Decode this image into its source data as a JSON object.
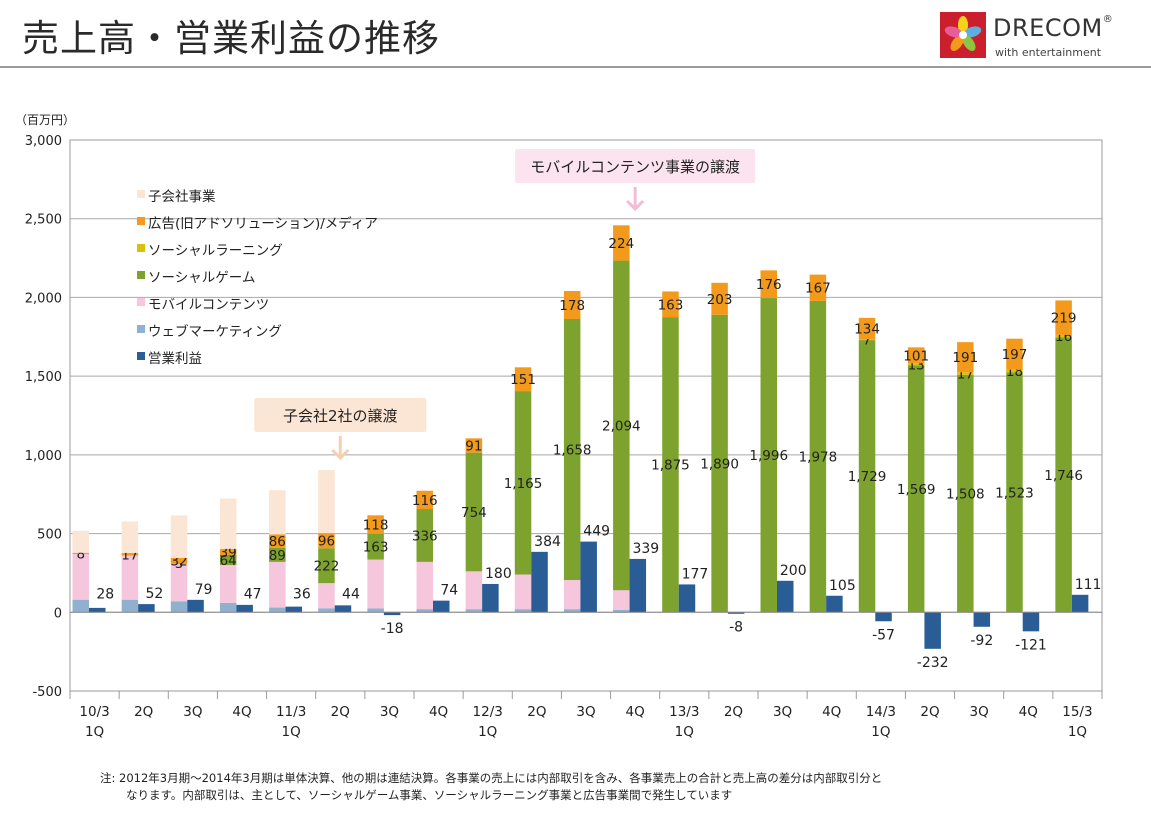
{
  "header": {
    "title": "売上高・営業利益の推移",
    "logo_text": "DRECOM",
    "logo_sub": "with entertainment",
    "logo_mark": "®"
  },
  "note": {
    "line1": "注: 2012年3月期～2014年3月期は単体決算、他の期は連結決算。各事業の売上には内部取引を含み、各事業売上の合計と売上高の差分は内部取引分と",
    "line2": "なります。内部取引は、主として、ソーシャルゲーム事業、ソーシャルラーニング事業と広告事業間で発生しています"
  },
  "chart_data": {
    "type": "bar",
    "unit_label": "（百万円）",
    "ylim": [
      -500,
      3000
    ],
    "yticks": [
      -500,
      0,
      500,
      1000,
      1500,
      2000,
      2500,
      3000
    ],
    "ytick_labels": [
      "-500",
      "0",
      "500",
      "1,000",
      "1,500",
      "2,000",
      "2,500",
      "3,000"
    ],
    "categories": [
      [
        "10/3",
        "1Q"
      ],
      [
        "2Q"
      ],
      [
        "3Q"
      ],
      [
        "4Q"
      ],
      [
        "11/3",
        "1Q"
      ],
      [
        "2Q"
      ],
      [
        "3Q"
      ],
      [
        "4Q"
      ],
      [
        "12/3",
        "1Q"
      ],
      [
        "2Q"
      ],
      [
        "3Q"
      ],
      [
        "4Q"
      ],
      [
        "13/3",
        "1Q"
      ],
      [
        "2Q"
      ],
      [
        "3Q"
      ],
      [
        "4Q"
      ],
      [
        "14/3",
        "1Q"
      ],
      [
        "2Q"
      ],
      [
        "3Q"
      ],
      [
        "4Q"
      ],
      [
        "15/3",
        "1Q"
      ]
    ],
    "stack_series": [
      {
        "name": "ウェブマーケティング",
        "color": "#8fb0cf",
        "values": [
          80,
          80,
          70,
          60,
          30,
          25,
          25,
          20,
          20,
          20,
          20,
          15,
          0,
          0,
          0,
          0,
          0,
          0,
          0,
          0,
          0
        ]
      },
      {
        "name": "モバイルコンテンツ",
        "color": "#f6c6dc",
        "values": [
          290,
          280,
          240,
          240,
          290,
          160,
          310,
          300,
          240,
          220,
          185,
          125,
          0,
          0,
          0,
          0,
          0,
          0,
          0,
          0,
          0
        ]
      },
      {
        "name": "ソーシャルゲーム",
        "color": "#7da32e",
        "values": [
          null,
          null,
          3,
          64,
          89,
          222,
          163,
          336,
          754,
          1165,
          1658,
          2094,
          1875,
          1890,
          1996,
          1978,
          1729,
          1569,
          1508,
          1523,
          1746
        ]
      },
      {
        "name": "ソーシャルラーニング",
        "color": "#d9c00a",
        "values": [
          null,
          null,
          null,
          null,
          null,
          null,
          null,
          null,
          null,
          null,
          null,
          null,
          null,
          null,
          null,
          null,
          7,
          13,
          17,
          18,
          16
        ]
      },
      {
        "name": "広告(旧アドソリューション)/メディア",
        "color": "#f39a1c",
        "values": [
          8,
          17,
          32,
          39,
          86,
          96,
          118,
          116,
          91,
          151,
          178,
          224,
          163,
          203,
          176,
          167,
          134,
          101,
          191,
          197,
          219
        ]
      },
      {
        "name": "子会社事業",
        "color": "#fbe5d4",
        "values": [
          140,
          200,
          270,
          320,
          280,
          400,
          0,
          0,
          0,
          0,
          0,
          0,
          0,
          0,
          0,
          0,
          0,
          0,
          0,
          0,
          0
        ]
      }
    ],
    "profit_series": {
      "name": "営業利益",
      "color": "#2a5d96",
      "values": [
        28,
        52,
        79,
        47,
        36,
        44,
        -18,
        74,
        180,
        384,
        449,
        339,
        177,
        -8,
        200,
        105,
        -57,
        -232,
        -92,
        -121,
        111
      ]
    },
    "legend": {
      "placement": "top-left",
      "items": [
        {
          "name": "子会社事業",
          "color": "#fbe5d4"
        },
        {
          "name": "広告(旧アドソリューション)/メディア",
          "color": "#f39a1c"
        },
        {
          "name": "ソーシャルラーニング",
          "color": "#d9c00a"
        },
        {
          "name": "ソーシャルゲーム",
          "color": "#7da32e"
        },
        {
          "name": "モバイルコンテンツ",
          "color": "#f6c6dc"
        },
        {
          "name": "ウェブマーケティング",
          "color": "#8fb0cf"
        },
        {
          "name": "営業利益",
          "color": "#2a5d96"
        }
      ]
    },
    "callouts": [
      {
        "text": "子会社2社の譲渡",
        "category_index": 5
      },
      {
        "text": "モバイルコンテンツ事業の譲渡",
        "category_index": 11
      }
    ],
    "grid": true
  }
}
